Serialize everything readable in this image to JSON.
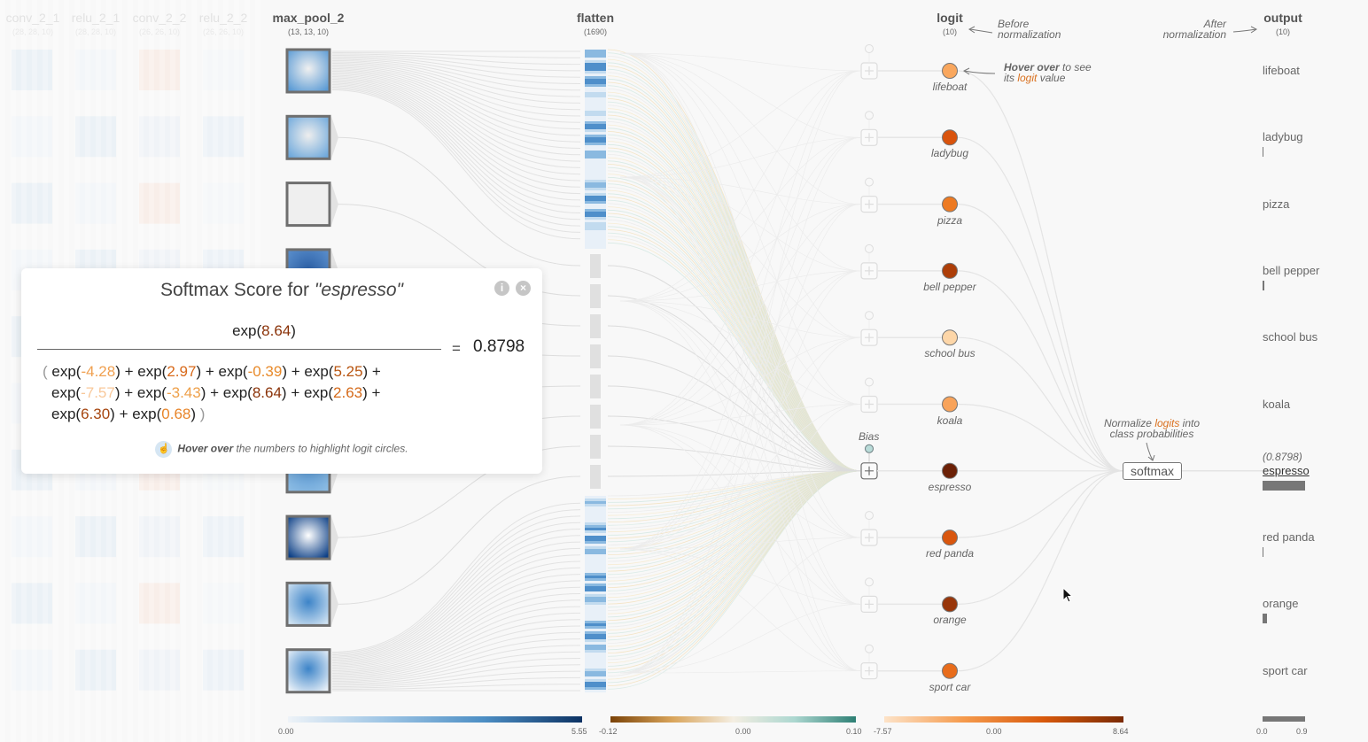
{
  "layers": {
    "faded": [
      {
        "name": "conv_2_1",
        "dim": "(28, 28, 10)"
      },
      {
        "name": "relu_2_1",
        "dim": "(28, 28, 10)"
      },
      {
        "name": "conv_2_2",
        "dim": "(26, 26, 10)"
      },
      {
        "name": "relu_2_2",
        "dim": "(26, 26, 10)"
      }
    ],
    "max_pool": {
      "name": "max_pool_2",
      "dim": "(13, 13, 10)"
    },
    "flatten": {
      "name": "flatten",
      "dim": "(1690)"
    },
    "logit": {
      "name": "logit",
      "dim": "(10)"
    },
    "output": {
      "name": "output",
      "dim": "(10)"
    }
  },
  "annotations": {
    "before_norm": "Before normalization",
    "after_norm": "After normalization",
    "hover_bold": "Hover over",
    "hover_rest1": " to see",
    "hover_its": "its ",
    "hover_logit": "logit",
    "hover_value": " value",
    "normalize_pre": "Normalize ",
    "normalize_hl": "logits",
    "normalize_post": " into",
    "normalize_line2": "class probabilities",
    "bias_label": "Bias",
    "softmax_label": "softmax"
  },
  "classes": [
    {
      "label": "lifeboat",
      "logit": -4.28,
      "color": "#f9a75e",
      "prob_bar": 0
    },
    {
      "label": "ladybug",
      "logit": 2.97,
      "color": "#d9530c",
      "prob_bar": 1
    },
    {
      "label": "pizza",
      "logit": -0.39,
      "color": "#ed7a22",
      "prob_bar": 0
    },
    {
      "label": "bell pepper",
      "logit": 5.25,
      "color": "#ad3e08",
      "prob_bar": 2
    },
    {
      "label": "school bus",
      "logit": -7.57,
      "color": "#fdd6a8",
      "prob_bar": 0
    },
    {
      "label": "koala",
      "logit": -3.43,
      "color": "#f8a35a",
      "prob_bar": 0
    },
    {
      "label": "espresso",
      "logit": 8.64,
      "color": "#6b2006",
      "prob_bar": 48,
      "prob": "(0.8798)",
      "active": true
    },
    {
      "label": "red panda",
      "logit": 2.63,
      "color": "#d9560e",
      "prob_bar": 1
    },
    {
      "label": "orange",
      "logit": 6.3,
      "color": "#98360a",
      "prob_bar": 5
    },
    {
      "label": "sport car",
      "logit": 0.68,
      "color": "#e86c1b",
      "prob_bar": 0
    }
  ],
  "modal": {
    "title_prefix": "Softmax Score for ",
    "title_class": "\"espresso\"",
    "numerator": {
      "fn": "exp(",
      "value": "8.64",
      "color": "#8a3208",
      "close": ")"
    },
    "equals": "=",
    "result": "0.8798",
    "denominator_lines": [
      [
        {
          "value": "-4.28",
          "color": "#f0a050"
        },
        {
          "value": "2.97",
          "color": "#d8691a"
        },
        {
          "value": "-0.39",
          "color": "#e88a2a"
        },
        {
          "value": "5.25",
          "color": "#b8540f"
        }
      ],
      [
        {
          "value": "-7.57",
          "color": "#f8c89a"
        },
        {
          "value": "-3.43",
          "color": "#eea04a"
        },
        {
          "value": "8.64",
          "color": "#8a3208"
        },
        {
          "value": "2.63",
          "color": "#d56a1a"
        }
      ],
      [
        {
          "value": "6.30",
          "color": "#a64610"
        },
        {
          "value": "0.68",
          "color": "#e8852a"
        }
      ]
    ],
    "hint_bold": "Hover over",
    "hint_rest": " the numbers to highlight logit circles.",
    "info_icon": "i",
    "close_icon": "×"
  },
  "legends": {
    "pool": {
      "min": "0.00",
      "max": "5.55",
      "colors": [
        "#eef3f8",
        "#9cc4e4",
        "#4c8ec4",
        "#0c3263"
      ]
    },
    "weights": {
      "min": "-0.12",
      "mid": "0.00",
      "max": "0.10",
      "colors": [
        "#7a4207",
        "#d9a45a",
        "#f4eee2",
        "#acd7d0",
        "#2d7f74"
      ]
    },
    "logit": {
      "min": "-7.57",
      "mid": "0.00",
      "max": "8.64",
      "colors": [
        "#fde3c8",
        "#f59a4c",
        "#d8590c",
        "#7a2a04"
      ]
    },
    "output": {
      "min": "0.0",
      "max": "0.9"
    }
  },
  "colors": {
    "background": "#f8f8f8",
    "edge": "#dcdcdc",
    "accent_orange": "#d9701e"
  }
}
